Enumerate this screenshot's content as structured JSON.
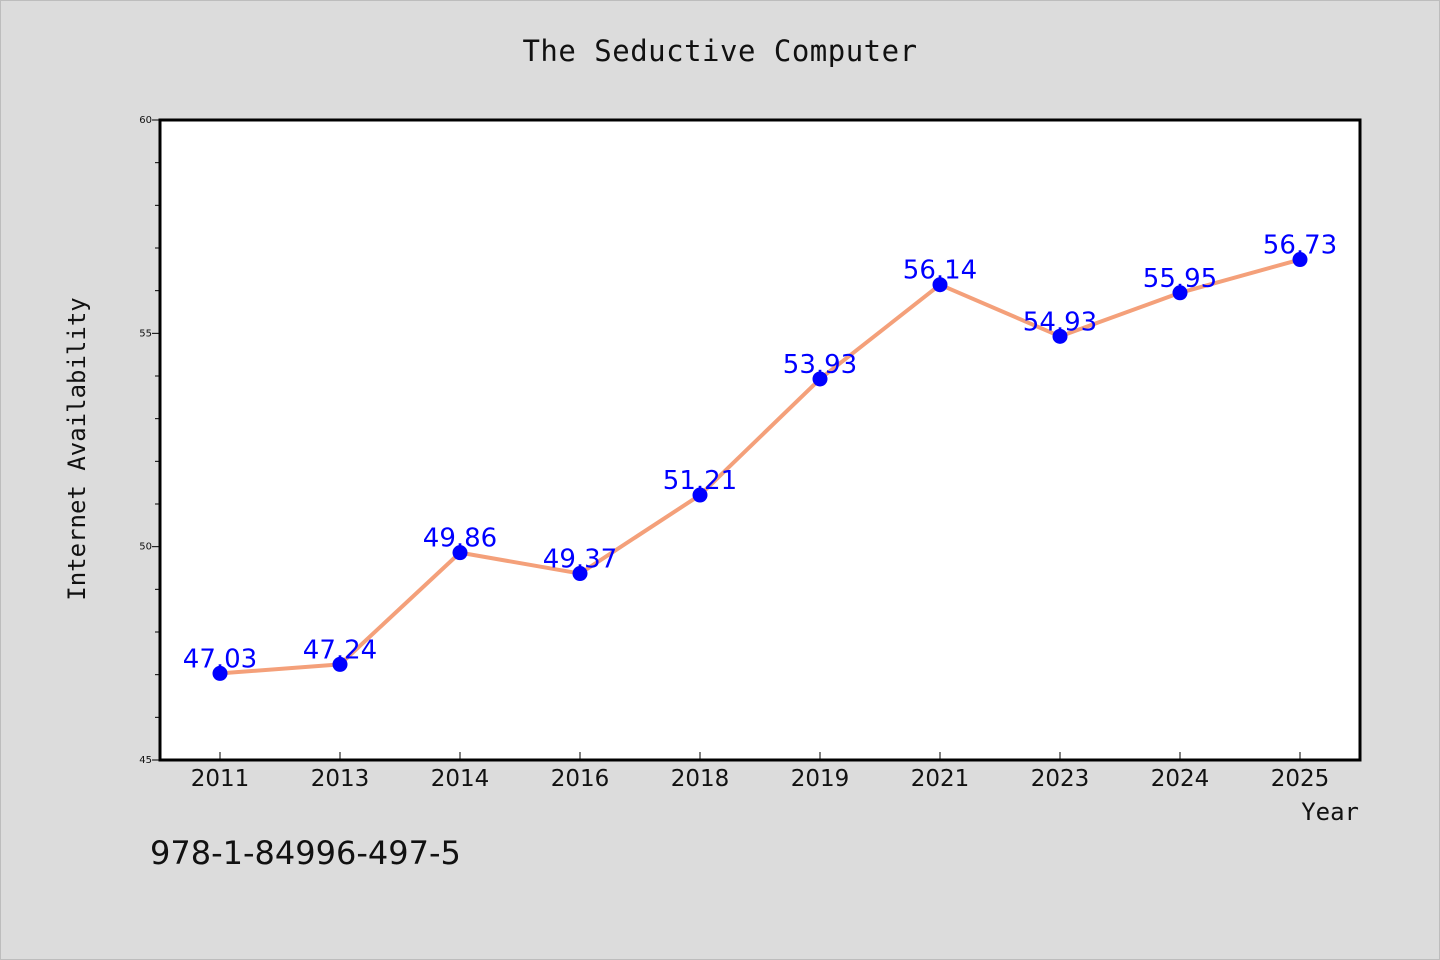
{
  "title": "The Seductive Computer",
  "footer_text": "978-1-84996-497-5",
  "chart_data": {
    "type": "line",
    "title": "The Seductive Computer",
    "xlabel": "Year",
    "ylabel": "Internet Availability",
    "categories": [
      "2011",
      "2013",
      "2014",
      "2016",
      "2018",
      "2019",
      "2021",
      "2023",
      "2024",
      "2025"
    ],
    "series": [
      {
        "values": [
          47.03,
          47.24,
          49.86,
          49.37,
          51.21,
          53.93,
          56.14,
          54.93,
          55.95,
          56.73
        ],
        "point_labels": [
          "47.03",
          "47.24",
          "49.86",
          "49.37",
          "51.21",
          "53.93",
          "56.14",
          "54.93",
          "55.95",
          "56.73"
        ],
        "line_color": "#f4a07a",
        "marker_color": "#0000ff"
      }
    ],
    "ylim": [
      45,
      60
    ],
    "yticks": [
      "45",
      "50",
      "55",
      "60"
    ],
    "grid": false,
    "legend": "none",
    "plot_background": "#ffffff",
    "figure_background": "#dcdcdc"
  }
}
